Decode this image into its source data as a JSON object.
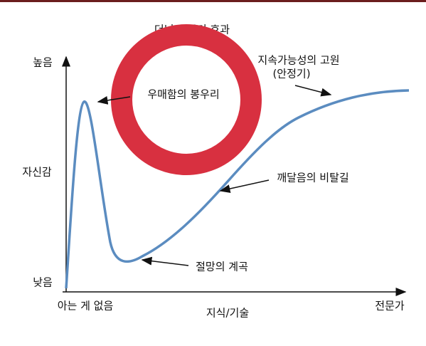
{
  "title": "더닝 크루거 효과",
  "y_axis": {
    "high": "높음",
    "low": "낮음",
    "label": "자신감"
  },
  "x_axis": {
    "start": "아는 게 없음",
    "label": "지식/기술",
    "end": "전문가"
  },
  "annotations": {
    "peak": "우매함의 봉우리",
    "plateau": "지속가능성의 고원",
    "plateau_note": "(안정기)",
    "slope": "깨달음의 비탈길",
    "valley": "절망의 계곡"
  }
}
